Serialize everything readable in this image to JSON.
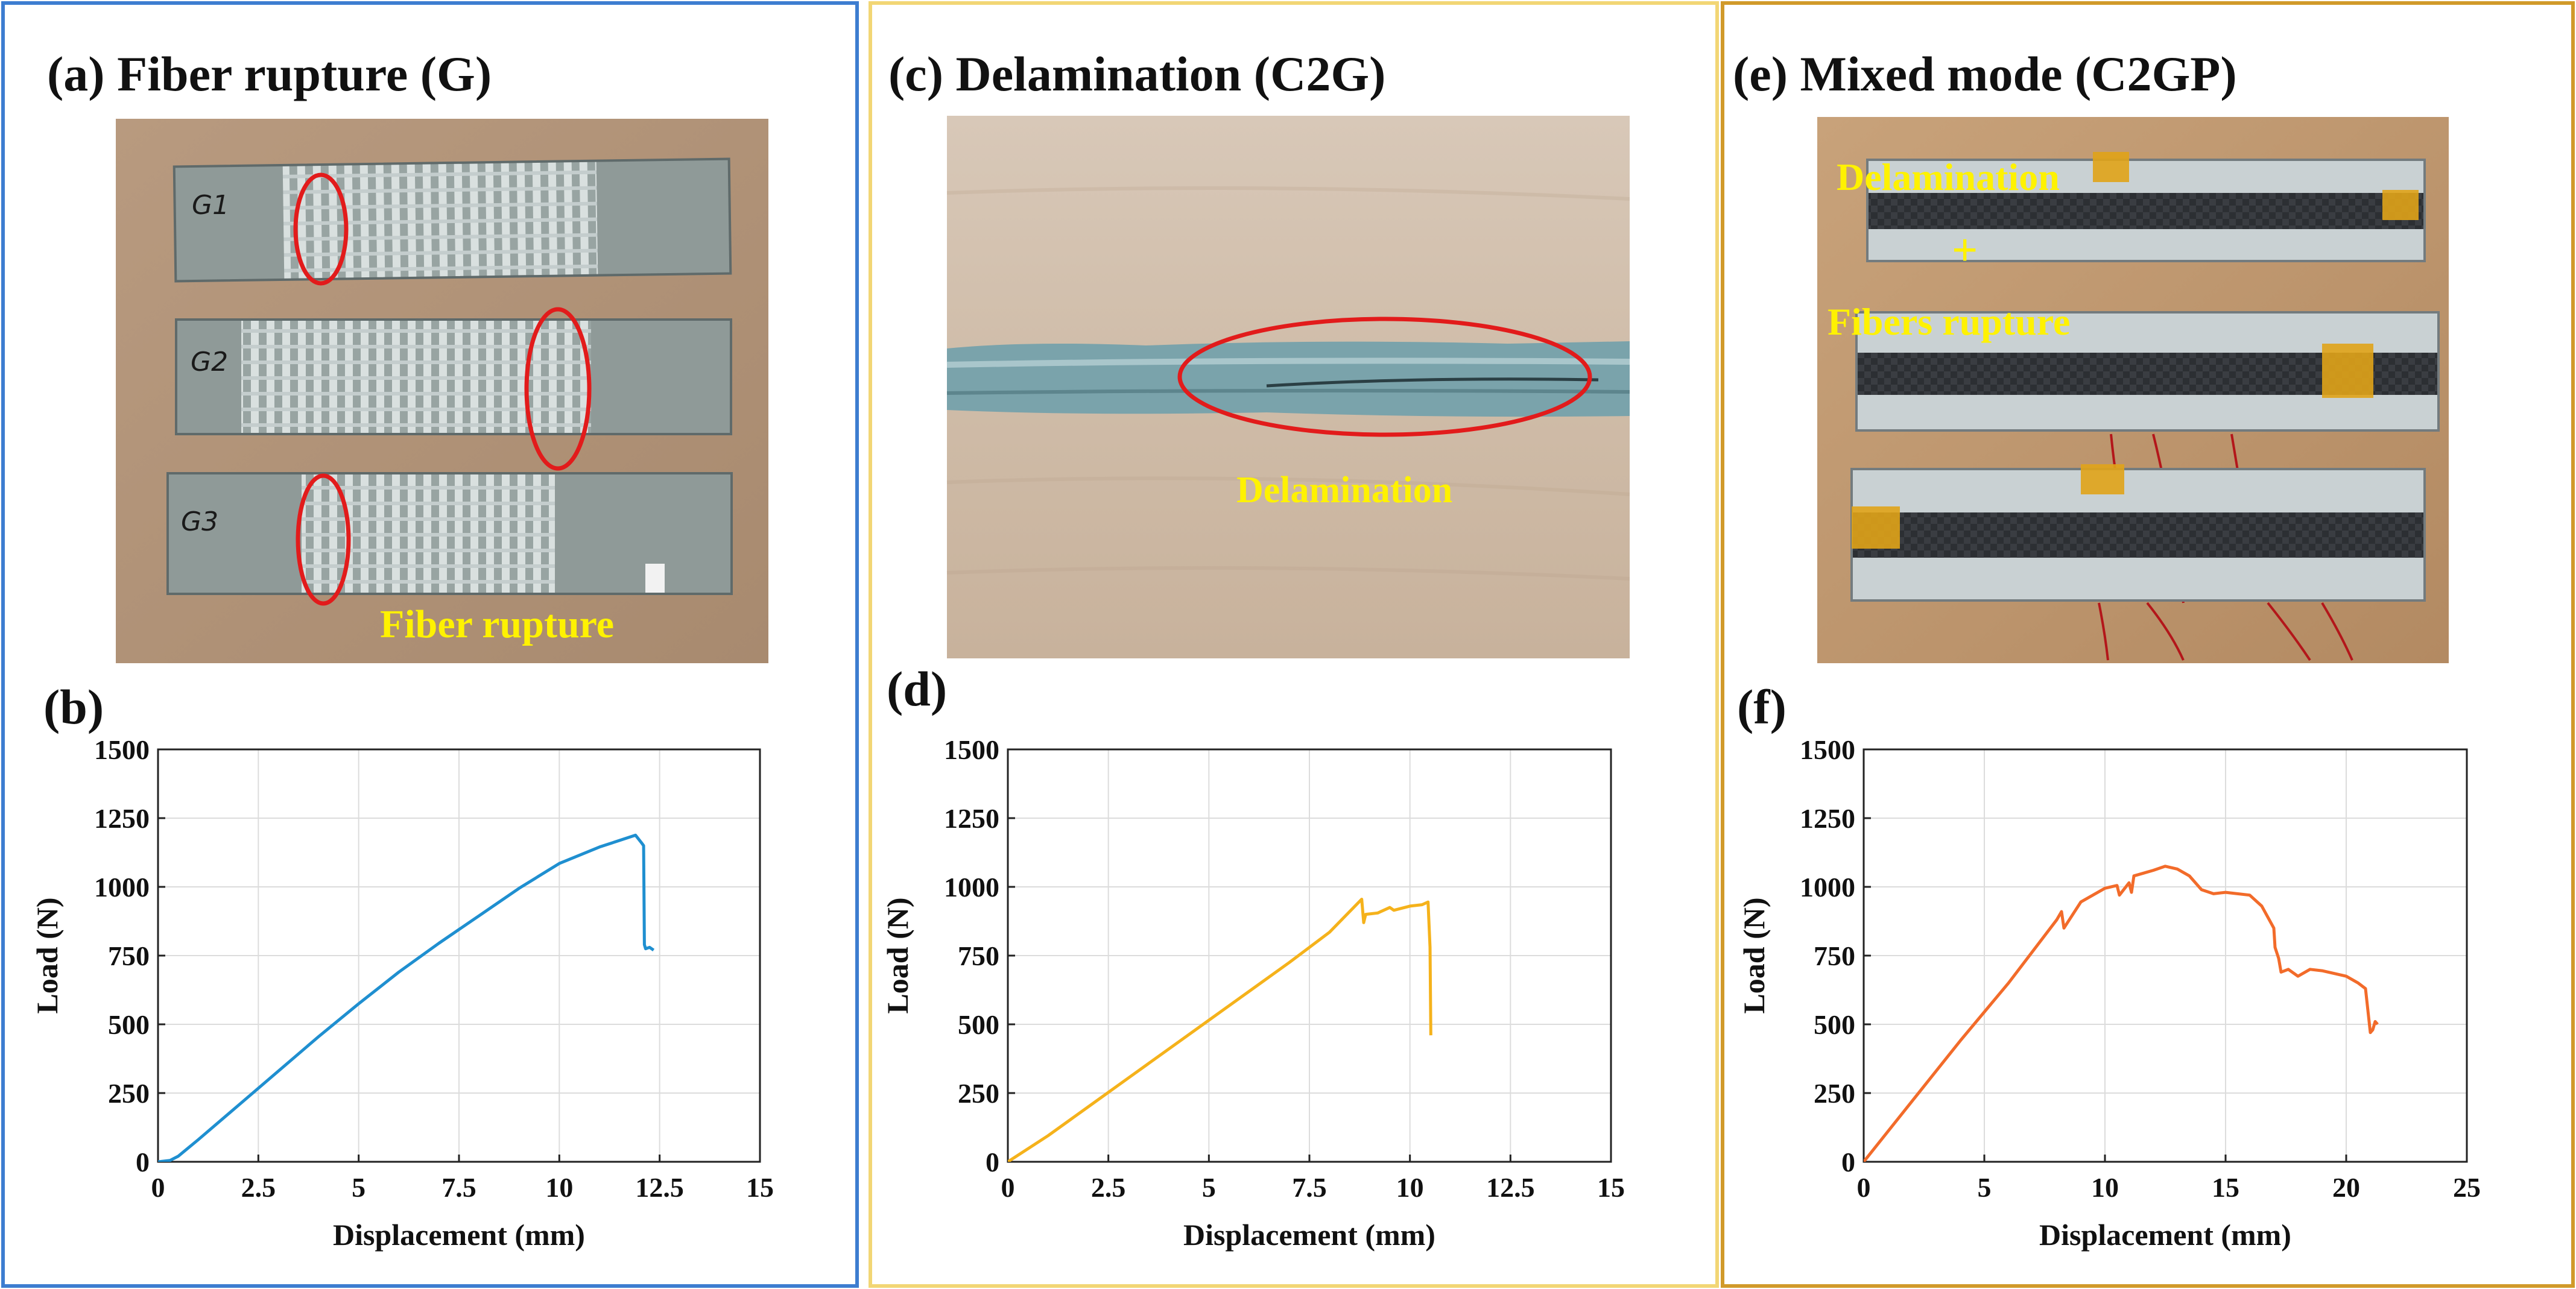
{
  "panels": {
    "a": {
      "title": "(a) Fiber rupture (G)",
      "annotation": "Fiber rupture",
      "specimen_labels": [
        "G1",
        "G2",
        "G3"
      ]
    },
    "b": {
      "label": "(b)"
    },
    "c": {
      "title": "(c) Delamination (C2G)",
      "annotation": "Delamination"
    },
    "d": {
      "label": "(d)"
    },
    "e": {
      "title": "(e) Mixed mode (C2GP)",
      "annotation_1": "Delamination",
      "annotation_plus": "+",
      "annotation_2": "Fibers rupture"
    },
    "f": {
      "label": "(f)"
    }
  },
  "colors": {
    "frame_a": "#3d7dd0",
    "frame_c": "#f2d675",
    "frame_e": "#d19a2a",
    "series_b": "#1f8fd0",
    "series_d": "#f5b21b",
    "series_f": "#f26b2a",
    "highlight_ellipse": "#e21b1b",
    "annotation_text": "#fff200"
  },
  "chart_data": [
    {
      "id": "b",
      "type": "line",
      "xlabel": "Displacement (mm)",
      "ylabel": "Load (N)",
      "xlim": [
        0,
        15
      ],
      "ylim": [
        0,
        1500
      ],
      "xticks": [
        0,
        2.5,
        5,
        7.5,
        10,
        12.5,
        15
      ],
      "xtick_labels": [
        "0",
        "2.5",
        "5",
        "7.5",
        "10",
        "12.5",
        "15"
      ],
      "yticks": [
        0,
        250,
        500,
        750,
        1000,
        1250,
        1500
      ],
      "ytick_labels": [
        "0",
        "250",
        "500",
        "750",
        "1000",
        "1250",
        "1500"
      ],
      "grid": true,
      "series": [
        {
          "name": "G",
          "x": [
            0,
            0.3,
            0.5,
            1,
            2,
            3,
            4,
            5,
            6,
            7,
            8,
            9,
            10,
            11,
            11.9,
            12.05,
            12.1,
            12.12,
            12.15,
            12.25,
            12.35
          ],
          "y": [
            0,
            5,
            20,
            80,
            205,
            330,
            455,
            575,
            690,
            795,
            895,
            995,
            1085,
            1145,
            1188,
            1160,
            1150,
            790,
            775,
            780,
            770
          ]
        }
      ]
    },
    {
      "id": "d",
      "type": "line",
      "xlabel": "Displacement (mm)",
      "ylabel": "Load (N)",
      "xlim": [
        0,
        15
      ],
      "ylim": [
        0,
        1500
      ],
      "xticks": [
        0,
        2.5,
        5,
        7.5,
        10,
        12.5,
        15
      ],
      "xtick_labels": [
        "0",
        "2.5",
        "5",
        "7.5",
        "10",
        "12.5",
        "15"
      ],
      "yticks": [
        0,
        250,
        500,
        750,
        1000,
        1250,
        1500
      ],
      "ytick_labels": [
        "0",
        "250",
        "500",
        "750",
        "1000",
        "1250",
        "1500"
      ],
      "grid": true,
      "series": [
        {
          "name": "C2G",
          "x": [
            0,
            1,
            2,
            3,
            4,
            5,
            6,
            7,
            8,
            8.8,
            8.85,
            8.9,
            9.2,
            9.5,
            9.6,
            10,
            10.3,
            10.45,
            10.5,
            10.52
          ],
          "y": [
            0,
            95,
            200,
            305,
            410,
            515,
            620,
            725,
            835,
            955,
            870,
            900,
            905,
            925,
            915,
            930,
            935,
            945,
            780,
            460
          ]
        }
      ]
    },
    {
      "id": "f",
      "type": "line",
      "xlabel": "Displacement (mm)",
      "ylabel": "Load (N)",
      "xlim": [
        0,
        25
      ],
      "ylim": [
        0,
        1500
      ],
      "xticks": [
        0,
        5,
        10,
        15,
        20,
        25
      ],
      "xtick_labels": [
        "0",
        "5",
        "10",
        "15",
        "20",
        "25"
      ],
      "yticks": [
        0,
        250,
        500,
        750,
        1000,
        1250,
        1500
      ],
      "ytick_labels": [
        "0",
        "250",
        "500",
        "750",
        "1000",
        "1250",
        "1500"
      ],
      "grid": true,
      "series": [
        {
          "name": "C2GP",
          "x": [
            0,
            2,
            4,
            6,
            8,
            8.2,
            8.3,
            9,
            10,
            10.5,
            10.6,
            11,
            11.1,
            11.2,
            12,
            12.5,
            13,
            13.5,
            14,
            14.5,
            15,
            16,
            16.5,
            17,
            17.05,
            17.2,
            17.3,
            17.6,
            18,
            18.5,
            19,
            20,
            20.5,
            20.8,
            21,
            21.1,
            21.2,
            21.3
          ],
          "y": [
            0,
            220,
            440,
            650,
            880,
            910,
            850,
            945,
            995,
            1005,
            970,
            1015,
            980,
            1040,
            1060,
            1075,
            1065,
            1040,
            990,
            975,
            980,
            970,
            930,
            850,
            780,
            740,
            690,
            700,
            675,
            700,
            695,
            675,
            650,
            630,
            470,
            480,
            510,
            500
          ]
        }
      ]
    }
  ]
}
